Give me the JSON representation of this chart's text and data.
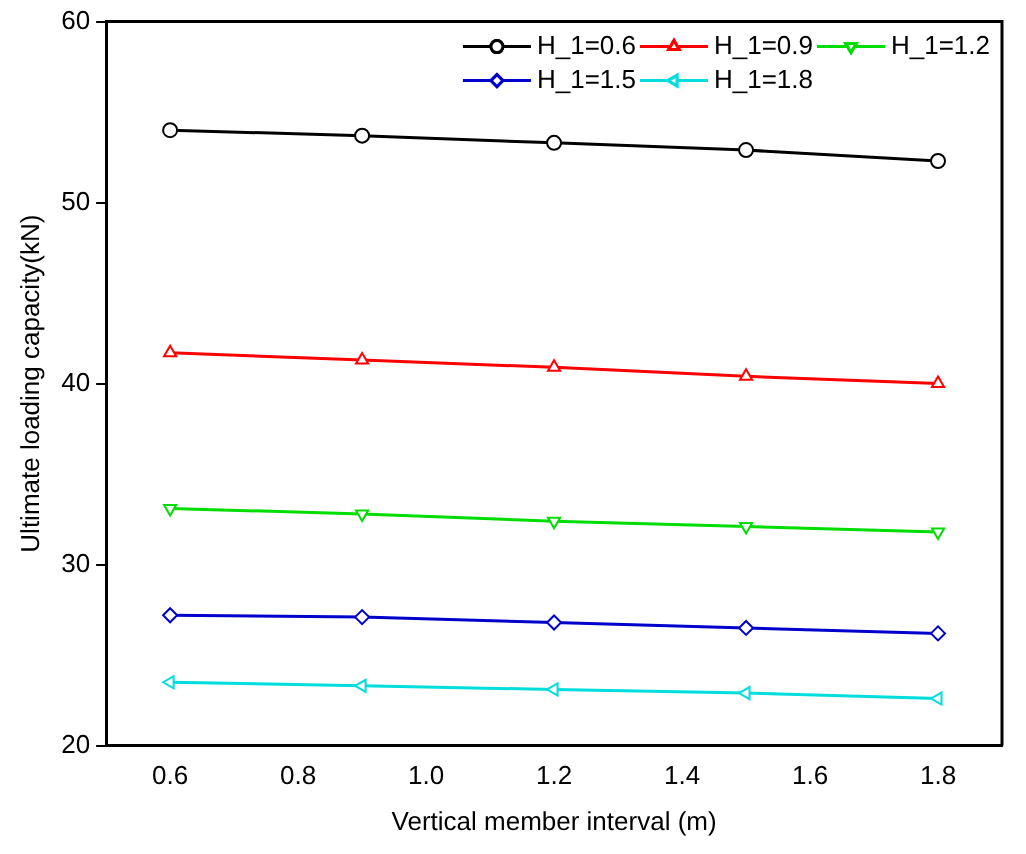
{
  "chart_data": {
    "type": "line",
    "xlabel": "Vertical member interval (m)",
    "ylabel": "Ultimate loading capacity(kN)",
    "x": [
      0.6,
      0.9,
      1.2,
      1.5,
      1.8
    ],
    "series": [
      {
        "name": "H_1=0.6",
        "color": "#000000",
        "marker": "circle",
        "values": [
          54.0,
          53.7,
          53.3,
          52.9,
          52.3
        ]
      },
      {
        "name": "H_1=0.9",
        "color": "#ff0000",
        "marker": "triangle",
        "values": [
          41.7,
          41.3,
          40.9,
          40.4,
          40.0
        ]
      },
      {
        "name": "H_1=1.2",
        "color": "#00dd00",
        "marker": "triangle-down",
        "values": [
          33.1,
          32.8,
          32.4,
          32.1,
          31.8
        ]
      },
      {
        "name": "H_1=1.5",
        "color": "#0000cc",
        "marker": "diamond",
        "values": [
          27.2,
          27.1,
          26.8,
          26.5,
          26.2
        ]
      },
      {
        "name": "H_1=1.8",
        "color": "#00dddd",
        "marker": "triangle-left",
        "values": [
          23.5,
          23.3,
          23.1,
          22.9,
          22.6
        ]
      }
    ],
    "xlim": [
      0.5,
      1.9
    ],
    "xticks": [
      0.6,
      0.8,
      {
        "value": 1,
        "label": "1.0"
      },
      1.2,
      1.4,
      1.6,
      1.8
    ],
    "ylim": [
      20,
      60
    ],
    "yticks": [
      20,
      30,
      40,
      50,
      60
    ],
    "grid": false,
    "legend": "top right",
    "line_style": "solid"
  }
}
